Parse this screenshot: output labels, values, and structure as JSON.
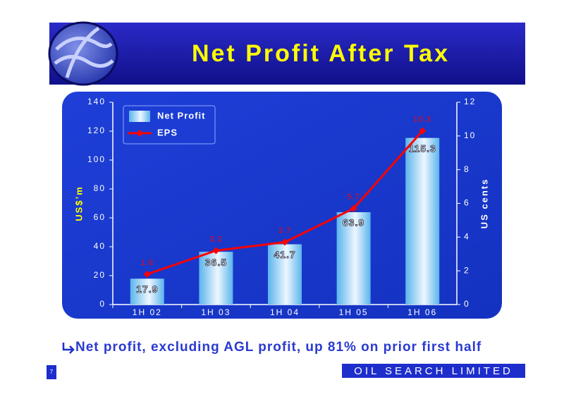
{
  "chart_data": {
    "type": "bar",
    "title": "Net Profit After Tax",
    "categories": [
      "1H 02",
      "1H 03",
      "1H 04",
      "1H 05",
      "1H 06"
    ],
    "series": [
      {
        "name": "Net Profit",
        "color": "#5ab4ec",
        "values": [
          17.9,
          36.5,
          41.7,
          63.9,
          115.3
        ]
      },
      {
        "name": "EPS",
        "color": "#ff0000",
        "type": "line",
        "axis": "y2",
        "values": [
          1.8,
          3.2,
          3.7,
          5.7,
          10.3
        ]
      }
    ],
    "ylabel": "US$’m",
    "y2label": "US cents",
    "ylim": [
      0,
      140
    ],
    "yticks": [
      0,
      20,
      40,
      60,
      80,
      100,
      120,
      140
    ],
    "y2lim": [
      0,
      12
    ],
    "y2ticks": [
      0,
      2,
      4,
      6,
      8,
      10,
      12
    ],
    "legend": "upper-left"
  },
  "footer": {
    "note": "Net profit, excluding AGL profit, up 81%  on prior first half",
    "page_number": "7",
    "company": "OIL SEARCH LIMITED"
  }
}
